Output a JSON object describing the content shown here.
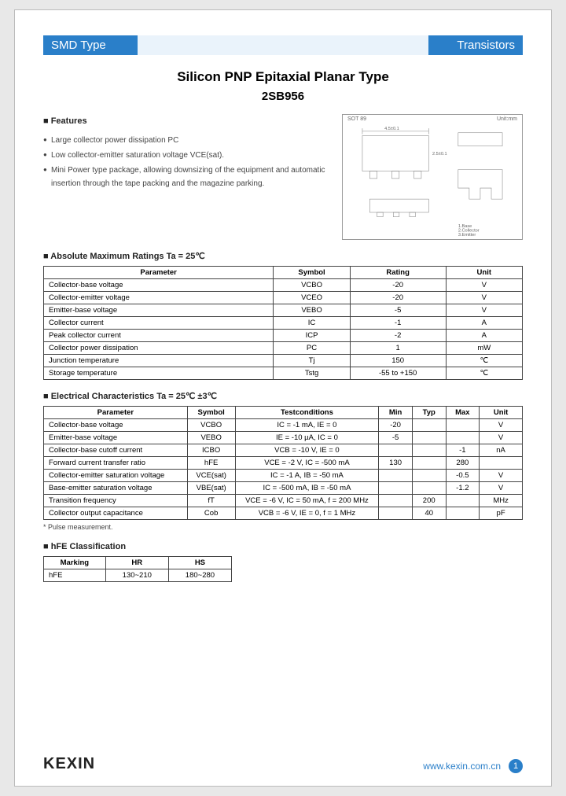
{
  "header": {
    "left": "SMD Type",
    "right": "Transistors"
  },
  "title": "Silicon PNP Epitaxial Planar Type",
  "part": "2SB956",
  "features": {
    "heading": "Features",
    "items": [
      "Large collector power dissipation PC",
      "Low collector-emitter saturation voltage VCE(sat).",
      "Mini Power type package, allowing downsizing of the equipment and automatic insertion through the tape packing and the magazine parking."
    ]
  },
  "package": {
    "name": "SOT 89",
    "unit": "Unit:mm",
    "pins": "1.Base\n2.Collector\n3.Emitter"
  },
  "abs": {
    "heading": "Absolute Maximum Ratings Ta = 25℃",
    "cols": [
      "Parameter",
      "Symbol",
      "Rating",
      "Unit"
    ],
    "rows": [
      [
        "Collector-base voltage",
        "VCBO",
        "-20",
        "V"
      ],
      [
        "Collector-emitter voltage",
        "VCEO",
        "-20",
        "V"
      ],
      [
        "Emitter-base voltage",
        "VEBO",
        "-5",
        "V"
      ],
      [
        "Collector current",
        "IC",
        "-1",
        "A"
      ],
      [
        "Peak collector current",
        "ICP",
        "-2",
        "A"
      ],
      [
        "Collector power dissipation",
        "PC",
        "1",
        "mW"
      ],
      [
        "Junction temperature",
        "Tj",
        "150",
        "℃"
      ],
      [
        "Storage temperature",
        "Tstg",
        "-55 to +150",
        "℃"
      ]
    ],
    "col_widths": [
      "48%",
      "16%",
      "20%",
      "16%"
    ]
  },
  "elec": {
    "heading": "Electrical Characteristics Ta = 25℃ ±3℃",
    "cols": [
      "Parameter",
      "Symbol",
      "Testconditions",
      "Min",
      "Typ",
      "Max",
      "Unit"
    ],
    "rows": [
      [
        "Collector-base voltage",
        "VCBO",
        "IC = -1 mA, IE = 0",
        "-20",
        "",
        "",
        "V"
      ],
      [
        "Emitter-base voltage",
        "VEBO",
        "IE = -10 µA, IC = 0",
        "-5",
        "",
        "",
        "V"
      ],
      [
        "Collector-base cutoff current",
        "ICBO",
        "VCB = -10 V, IE = 0",
        "",
        "",
        "-1",
        "nA"
      ],
      [
        "Forward current transfer ratio",
        "hFE",
        "VCE = -2 V, IC = -500 mA",
        "130",
        "",
        "280",
        ""
      ],
      [
        "Collector-emitter saturation voltage",
        "VCE(sat)",
        "IC = -1 A, IB = -50 mA",
        "",
        "",
        "-0.5",
        "V"
      ],
      [
        "Base-emitter saturation voltage",
        "VBE(sat)",
        "IC = -500 mA, IB = -50 mA",
        "",
        "",
        "-1.2",
        "V"
      ],
      [
        "Transition frequency",
        "fT",
        "VCE = -6 V, IC = 50 mA, f = 200 MHz",
        "",
        "200",
        "",
        "MHz"
      ],
      [
        "Collector output capacitance",
        "Cob",
        "VCB = -6 V, IE = 0, f = 1 MHz",
        "",
        "40",
        "",
        "pF"
      ]
    ],
    "col_widths": [
      "30%",
      "10%",
      "30%",
      "7%",
      "7%",
      "7%",
      "9%"
    ],
    "note": "* Pulse measurement."
  },
  "hfe": {
    "heading": "hFE Classification",
    "cols": [
      "Marking",
      "HR",
      "HS"
    ],
    "rows": [
      [
        "hFE",
        "130~210",
        "180~280"
      ]
    ]
  },
  "footer": {
    "logo": "KEXIN",
    "url": "www.kexin.com.cn",
    "page": "1"
  },
  "colors": {
    "brand": "#2a7fc9",
    "border": "#444",
    "text": "#222"
  }
}
